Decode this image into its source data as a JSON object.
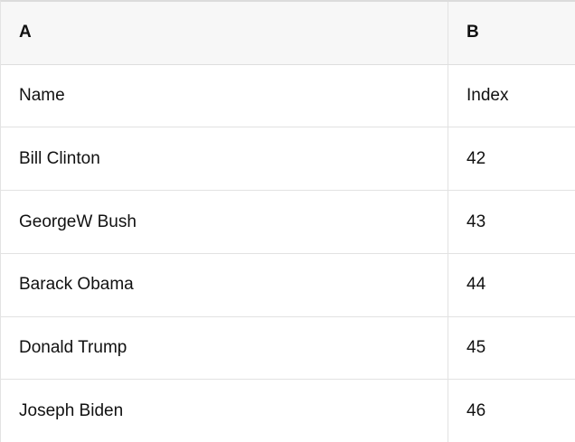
{
  "table": {
    "column_headers": [
      "A",
      "B"
    ],
    "rows": [
      {
        "a": "Name",
        "b": "Index"
      },
      {
        "a": "Bill Clinton",
        "b": "42"
      },
      {
        "a": "GeorgeW Bush",
        "b": "43"
      },
      {
        "a": "Barack Obama",
        "b": "44"
      },
      {
        "a": "Donald Trump",
        "b": "45"
      },
      {
        "a": "Joseph Biden",
        "b": "46"
      }
    ]
  },
  "colors": {
    "header_background": "#f7f7f7",
    "grid_line": "#e2e2e2",
    "top_border": "#dcdcdc",
    "text": "#111111",
    "cell_background": "#ffffff"
  }
}
